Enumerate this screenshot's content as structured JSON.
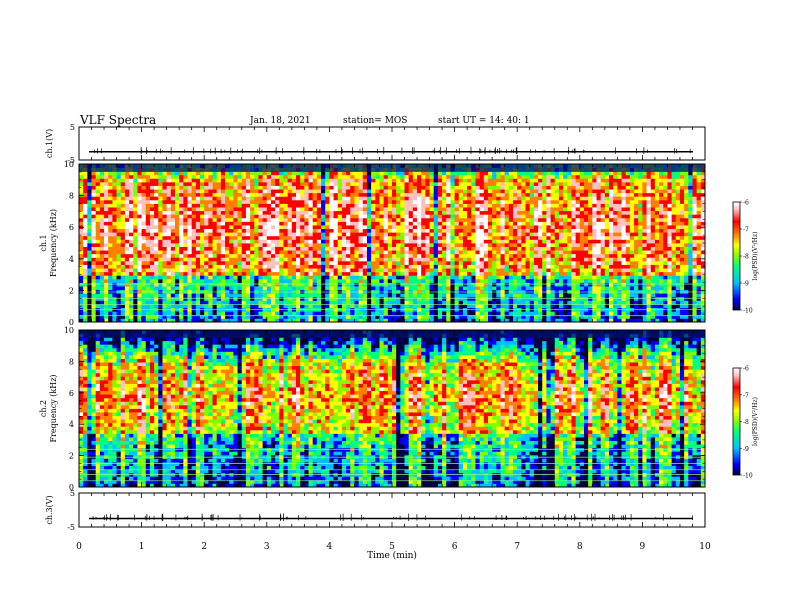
{
  "header": {
    "title": "VLF Spectra",
    "date": "Jan. 18, 2021",
    "station": "station= MOS",
    "start_ut": "start  UT =   14: 40: 1"
  },
  "chart_data": [
    {
      "type": "line",
      "panel": "ch1-waveform",
      "ylabel": "ch.1(V)",
      "ylim": [
        -5,
        5
      ],
      "y_ticks": [
        "5",
        "-5"
      ],
      "x_range": [
        0,
        10
      ],
      "trace_level": -2.5,
      "trace_color": "#000000"
    },
    {
      "type": "heatmap",
      "panel": "ch1-spectrogram",
      "ylabel": "ch.1 Frequency (kHz)",
      "ylim": [
        0,
        10
      ],
      "y_ticks": [
        "0",
        "2",
        "4",
        "6",
        "8",
        "10"
      ],
      "x_range": [
        0,
        10
      ],
      "dominant_band_khz": [
        3,
        9
      ],
      "colorbar": {
        "label": "log(PSD)(V²/Hz)",
        "range": [
          -10,
          -6
        ],
        "ticks": [
          "-6",
          "-7",
          "-8",
          "-9",
          "-10"
        ]
      }
    },
    {
      "type": "heatmap",
      "panel": "ch2-spectrogram",
      "ylabel": "ch.2 Frequency (kHz)",
      "ylim": [
        0,
        10
      ],
      "y_ticks": [
        "0",
        "2",
        "4",
        "6",
        "8",
        "10"
      ],
      "x_range": [
        0,
        10
      ],
      "dominant_band_khz": [
        3.5,
        8
      ],
      "colorbar": {
        "label": "log(PSD)(V²/Hz)",
        "range": [
          -10,
          -6
        ],
        "ticks": [
          "-6",
          "-7",
          "-8",
          "-9",
          "-10"
        ]
      }
    },
    {
      "type": "line",
      "panel": "ch3-waveform",
      "ylabel": "ch.3(V)",
      "ylim": [
        -5,
        5
      ],
      "y_ticks": [
        "5",
        "-5"
      ],
      "x_range": [
        0,
        10
      ],
      "trace_level": -2.5,
      "trace_color": "#000000"
    }
  ],
  "x_axis": {
    "label": "Time (min)",
    "ticks": [
      "0",
      "1",
      "2",
      "3",
      "4",
      "5",
      "6",
      "7",
      "8",
      "9",
      "10"
    ]
  },
  "colors": {
    "background": "#ffffff",
    "axis": "#000000",
    "colormap": [
      "#000040",
      "#0000ff",
      "#00c0ff",
      "#00ff80",
      "#80ff00",
      "#ffff00",
      "#ff8000",
      "#ff0000",
      "#ffc0c0",
      "#ffffff"
    ]
  }
}
